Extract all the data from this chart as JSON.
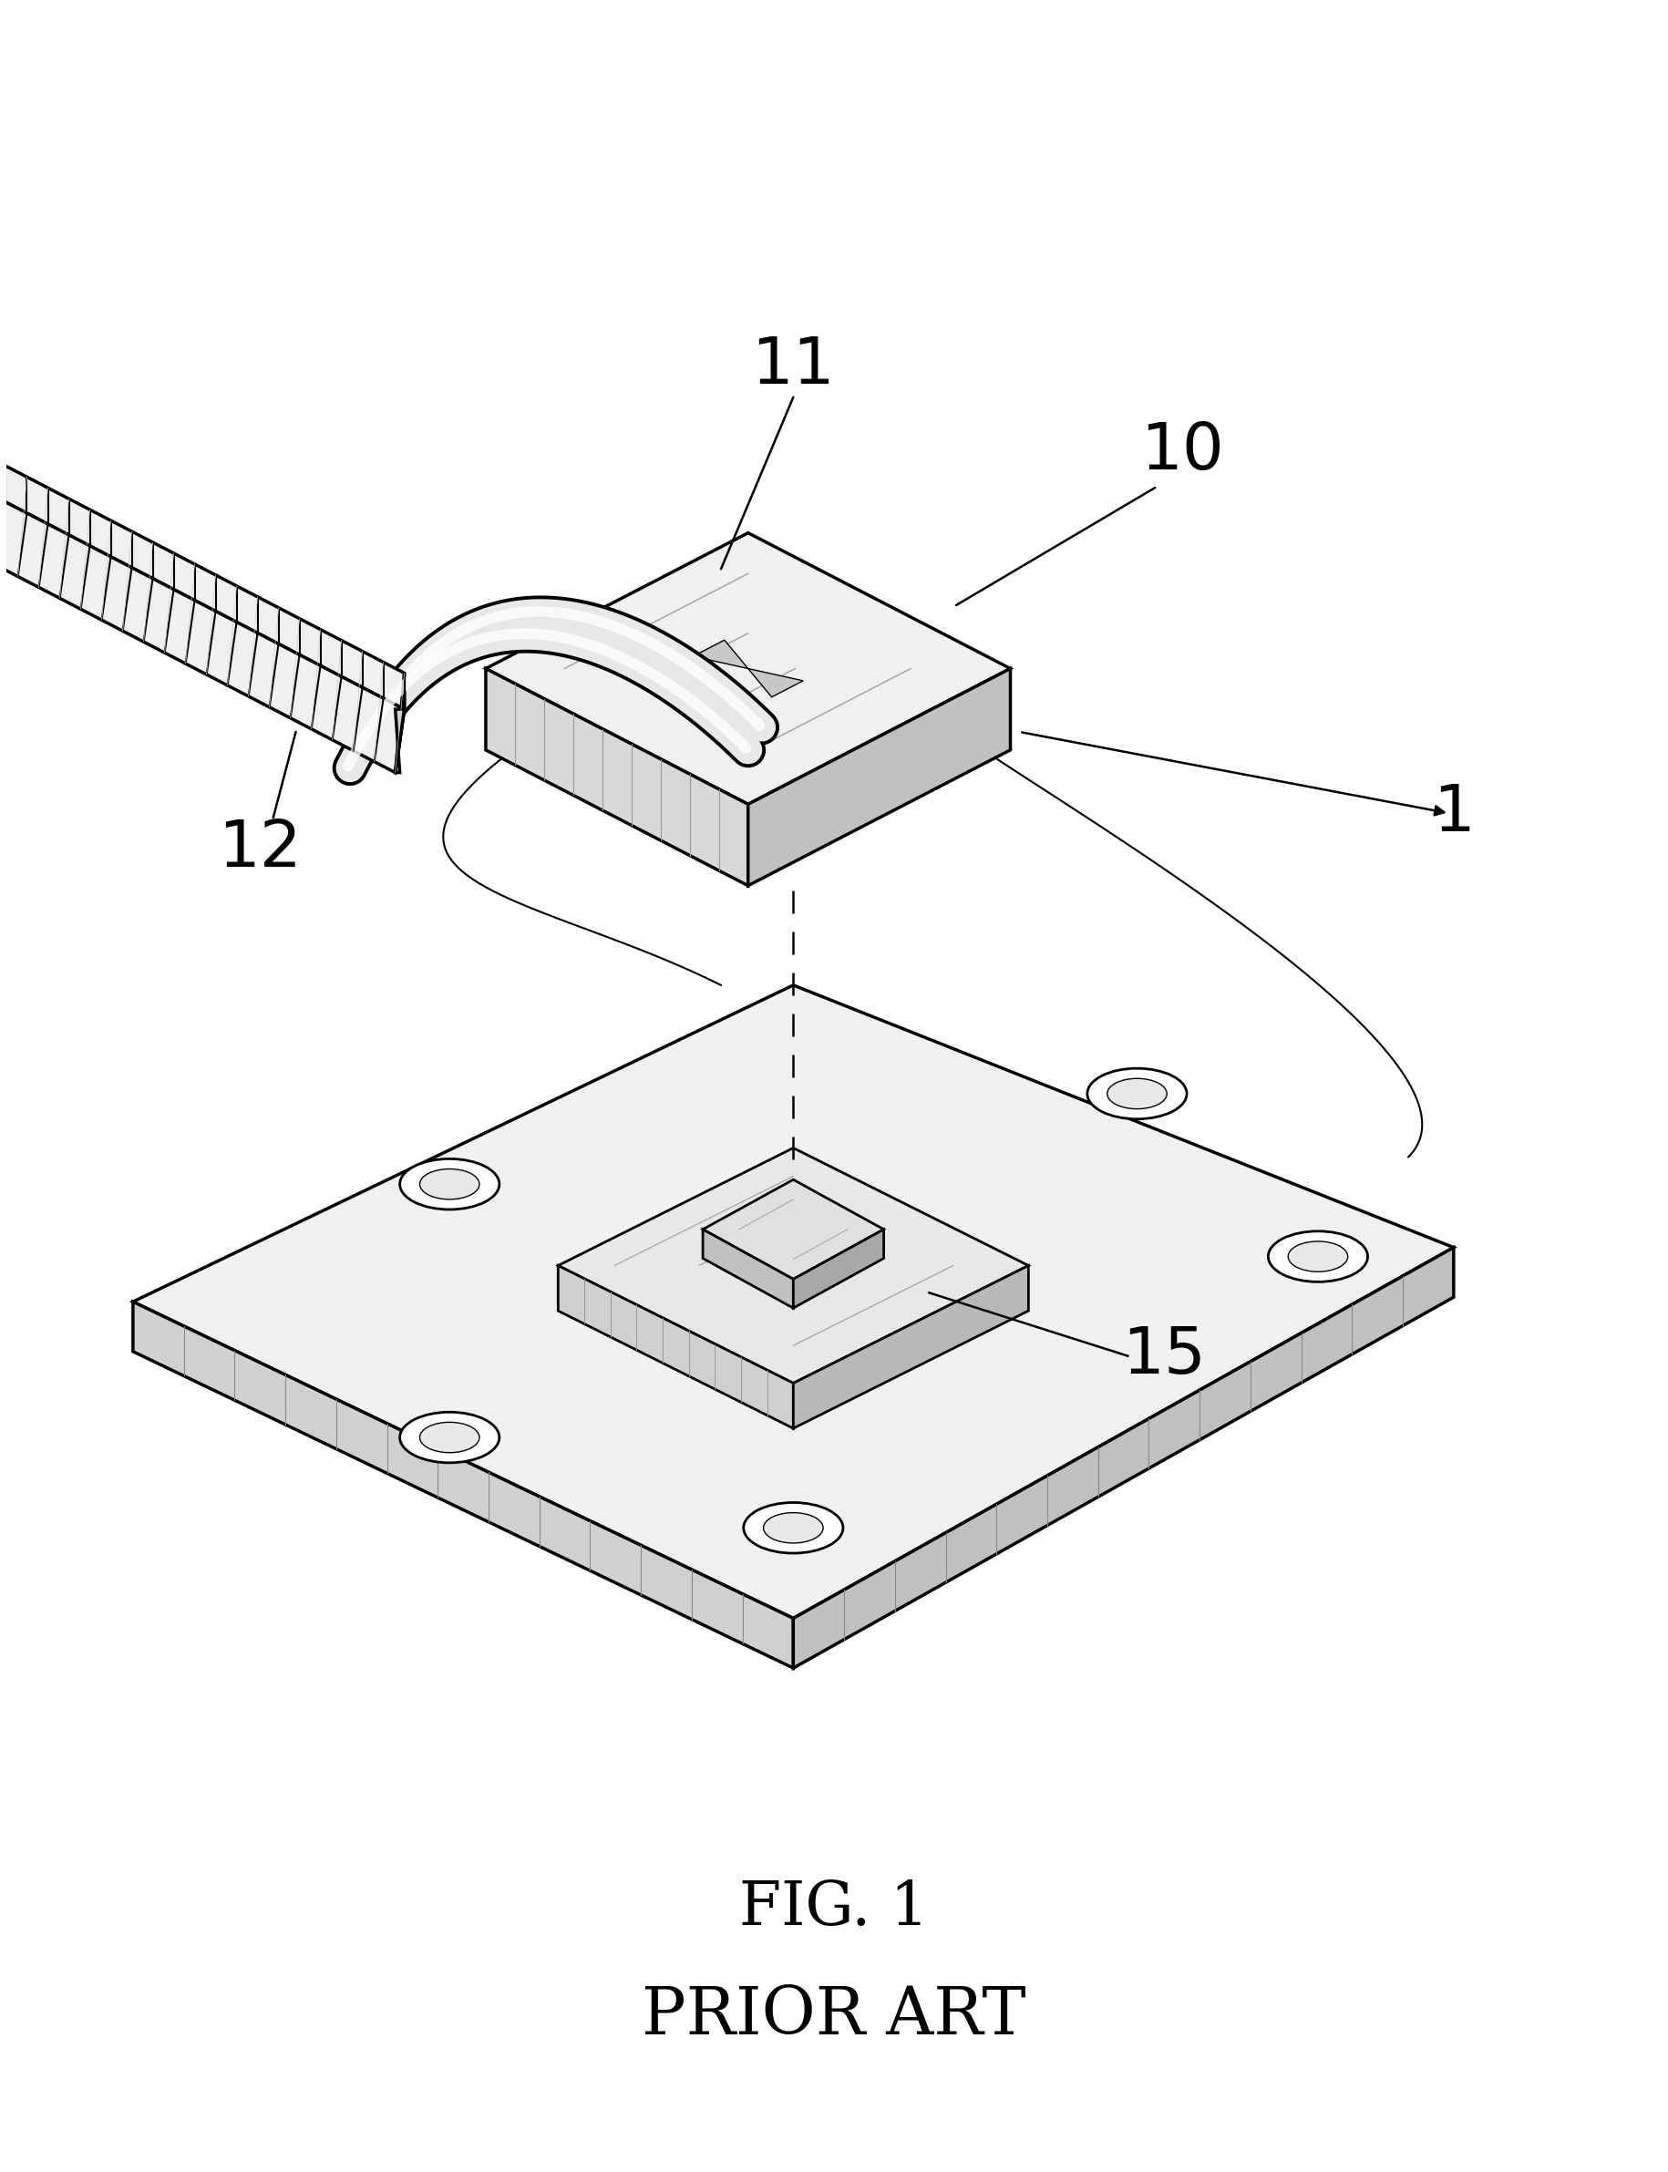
{
  "title": "FIG. 1",
  "subtitle": "PRIOR ART",
  "title_fontsize": 48,
  "subtitle_fontsize": 52,
  "bg_color": "#ffffff",
  "line_color": "#000000",
  "gray_light": "#f0f0f0",
  "gray_mid": "#d8d8d8",
  "gray_dark": "#b0b0b0",
  "gray_darker": "#888888"
}
